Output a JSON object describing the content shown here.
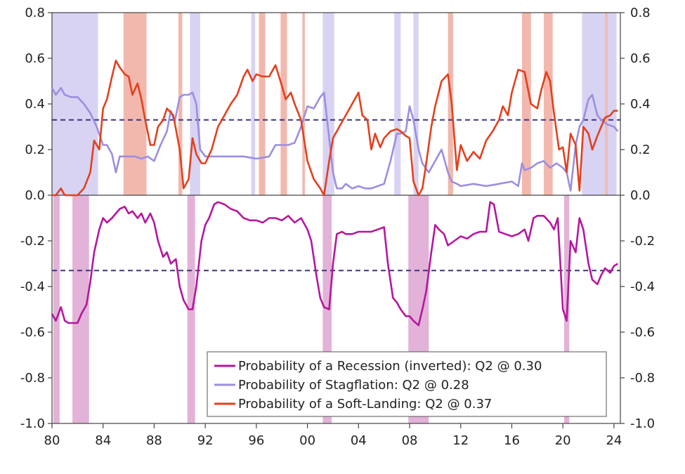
{
  "chart_data": {
    "type": "line",
    "x_ticks": [
      "80",
      "84",
      "88",
      "92",
      "96",
      "00",
      "04",
      "08",
      "12",
      "16",
      "20",
      "24"
    ],
    "y_ticks": [
      "0.8",
      "0.6",
      "0.4",
      "0.2",
      "0.0",
      "-0.2",
      "-0.4",
      "-0.6",
      "-0.8",
      "-1.0"
    ],
    "xlim": [
      1980,
      2024.5
    ],
    "ylim": [
      -1.0,
      0.8
    ],
    "threshold_upper": 0.33,
    "threshold_lower": -0.33,
    "legend_position": "bottom-right",
    "colors": {
      "recession": "#b5179e",
      "stagflation": "#9b8fe0",
      "soft_landing": "#e3401f",
      "stagflation_band": "#d8d3f3",
      "soft_landing_band": "#f2b8ad",
      "recession_band": "#e3b2d8",
      "threshold": "#3b3580"
    },
    "bands": {
      "stagflation": [
        [
          1980.0,
          1983.6
        ],
        [
          1990.8,
          1991.6
        ],
        [
          1995.6,
          1995.9
        ],
        [
          2001.2,
          2002.1
        ],
        [
          2006.8,
          2007.3
        ],
        [
          2008.3,
          2008.7
        ],
        [
          2021.5,
          2024.2
        ]
      ],
      "soft_landing": [
        [
          1985.6,
          1987.4
        ],
        [
          1989.9,
          1990.2
        ],
        [
          1996.2,
          1996.7
        ],
        [
          1997.9,
          1998.4
        ],
        [
          1999.6,
          1999.8
        ],
        [
          2011.0,
          2011.4
        ],
        [
          2016.8,
          2017.5
        ],
        [
          2018.5,
          2019.2
        ],
        [
          2023.3,
          2023.5
        ]
      ],
      "recession": [
        [
          1980.1,
          1980.6
        ],
        [
          1981.6,
          1982.9
        ],
        [
          1990.6,
          1991.2
        ],
        [
          2001.2,
          2001.9
        ],
        [
          2007.9,
          2009.5
        ],
        [
          2020.1,
          2020.5
        ]
      ]
    },
    "series": [
      {
        "name": "Probability of a Recession (inverted): Q2 @ 0.30",
        "x": [
          1980.0,
          1980.3,
          1980.7,
          1981.0,
          1981.3,
          1981.6,
          1982.0,
          1982.3,
          1982.7,
          1983.0,
          1983.3,
          1983.7,
          1984.0,
          1984.3,
          1984.7,
          1985.0,
          1985.3,
          1985.7,
          1986.0,
          1986.3,
          1986.7,
          1987.0,
          1987.3,
          1987.7,
          1988.0,
          1988.3,
          1988.7,
          1989.0,
          1989.3,
          1989.7,
          1990.0,
          1990.3,
          1990.7,
          1991.0,
          1991.3,
          1991.7,
          1992.0,
          1992.3,
          1992.7,
          1993.0,
          1993.5,
          1994.0,
          1994.5,
          1995.0,
          1995.5,
          1996.0,
          1996.5,
          1997.0,
          1997.5,
          1998.0,
          1998.5,
          1999.0,
          1999.5,
          2000.0,
          2000.3,
          2000.7,
          2001.0,
          2001.3,
          2001.7,
          2002.0,
          2002.3,
          2002.7,
          2003.0,
          2003.5,
          2004.0,
          2004.5,
          2005.0,
          2005.5,
          2006.0,
          2006.3,
          2006.7,
          2007.0,
          2007.3,
          2007.7,
          2008.0,
          2008.3,
          2008.7,
          2009.0,
          2009.3,
          2009.7,
          2010.0,
          2010.3,
          2010.7,
          2011.0,
          2011.5,
          2012.0,
          2012.5,
          2013.0,
          2013.5,
          2014.0,
          2014.3,
          2014.6,
          2015.0,
          2015.5,
          2016.0,
          2016.5,
          2017.0,
          2017.3,
          2017.7,
          2018.0,
          2018.5,
          2019.0,
          2019.3,
          2019.6,
          2020.0,
          2020.3,
          2020.6,
          2021.0,
          2021.3,
          2021.6,
          2022.0,
          2022.3,
          2022.7,
          2023.0,
          2023.3,
          2023.7,
          2024.0,
          2024.3
        ],
        "values": [
          -0.52,
          -0.55,
          -0.49,
          -0.55,
          -0.56,
          -0.56,
          -0.56,
          -0.52,
          -0.48,
          -0.38,
          -0.25,
          -0.15,
          -0.1,
          -0.12,
          -0.1,
          -0.08,
          -0.06,
          -0.05,
          -0.08,
          -0.07,
          -0.1,
          -0.08,
          -0.12,
          -0.08,
          -0.12,
          -0.2,
          -0.27,
          -0.25,
          -0.3,
          -0.28,
          -0.4,
          -0.46,
          -0.5,
          -0.5,
          -0.4,
          -0.2,
          -0.13,
          -0.1,
          -0.04,
          -0.03,
          -0.04,
          -0.06,
          -0.07,
          -0.1,
          -0.11,
          -0.11,
          -0.12,
          -0.1,
          -0.1,
          -0.11,
          -0.09,
          -0.12,
          -0.1,
          -0.15,
          -0.2,
          -0.35,
          -0.45,
          -0.49,
          -0.5,
          -0.3,
          -0.17,
          -0.16,
          -0.17,
          -0.17,
          -0.16,
          -0.16,
          -0.16,
          -0.15,
          -0.14,
          -0.3,
          -0.45,
          -0.47,
          -0.5,
          -0.53,
          -0.53,
          -0.55,
          -0.57,
          -0.5,
          -0.42,
          -0.25,
          -0.13,
          -0.15,
          -0.17,
          -0.22,
          -0.2,
          -0.18,
          -0.19,
          -0.17,
          -0.16,
          -0.16,
          -0.03,
          -0.04,
          -0.16,
          -0.17,
          -0.18,
          -0.17,
          -0.15,
          -0.2,
          -0.1,
          -0.09,
          -0.09,
          -0.12,
          -0.15,
          -0.1,
          -0.5,
          -0.55,
          -0.2,
          -0.25,
          -0.1,
          -0.15,
          -0.3,
          -0.37,
          -0.39,
          -0.35,
          -0.32,
          -0.34,
          -0.31,
          -0.3
        ]
      },
      {
        "name": "Probability of Stagflation: Q2 @ 0.28",
        "x": [
          1980.0,
          1980.3,
          1980.7,
          1981.0,
          1981.5,
          1982.0,
          1982.5,
          1983.0,
          1983.5,
          1984.0,
          1984.3,
          1984.7,
          1985.0,
          1985.3,
          1985.7,
          1986.5,
          1987.0,
          1987.5,
          1988.0,
          1988.5,
          1989.0,
          1989.3,
          1989.6,
          1990.0,
          1990.3,
          1990.7,
          1991.0,
          1991.3,
          1991.6,
          1992.0,
          1993.0,
          1994.0,
          1995.0,
          1996.0,
          1997.0,
          1997.5,
          1998.0,
          1998.5,
          1999.0,
          1999.5,
          2000.0,
          2000.5,
          2001.0,
          2001.3,
          2001.6,
          2002.0,
          2002.3,
          2002.7,
          2003.0,
          2003.5,
          2004.0,
          2004.5,
          2005.0,
          2005.5,
          2006.0,
          2006.5,
          2007.0,
          2007.3,
          2007.7,
          2008.0,
          2008.3,
          2008.7,
          2009.0,
          2009.5,
          2010.0,
          2010.5,
          2011.0,
          2011.3,
          2011.7,
          2012.0,
          2013.0,
          2014.0,
          2015.0,
          2016.0,
          2016.5,
          2016.8,
          2017.0,
          2017.5,
          2018.0,
          2018.5,
          2019.0,
          2019.5,
          2020.0,
          2020.3,
          2020.6,
          2021.0,
          2021.3,
          2021.6,
          2022.0,
          2022.3,
          2022.7,
          2023.0,
          2023.5,
          2024.0,
          2024.3
        ],
        "values": [
          0.47,
          0.44,
          0.47,
          0.44,
          0.43,
          0.43,
          0.4,
          0.36,
          0.3,
          0.22,
          0.22,
          0.18,
          0.1,
          0.17,
          0.17,
          0.17,
          0.16,
          0.17,
          0.15,
          0.22,
          0.28,
          0.37,
          0.32,
          0.43,
          0.44,
          0.44,
          0.45,
          0.4,
          0.2,
          0.17,
          0.17,
          0.17,
          0.17,
          0.16,
          0.17,
          0.22,
          0.22,
          0.22,
          0.23,
          0.3,
          0.39,
          0.38,
          0.43,
          0.45,
          0.3,
          0.1,
          0.03,
          0.03,
          0.05,
          0.03,
          0.04,
          0.03,
          0.03,
          0.04,
          0.05,
          0.15,
          0.27,
          0.27,
          0.28,
          0.39,
          0.33,
          0.2,
          0.14,
          0.1,
          0.15,
          0.2,
          0.1,
          0.06,
          0.05,
          0.04,
          0.05,
          0.04,
          0.05,
          0.06,
          0.04,
          0.14,
          0.11,
          0.12,
          0.14,
          0.15,
          0.12,
          0.14,
          0.12,
          0.1,
          0.02,
          0.22,
          0.3,
          0.33,
          0.42,
          0.44,
          0.35,
          0.33,
          0.31,
          0.3,
          0.28
        ]
      },
      {
        "name": "Probability of a Soft-Landing: Q2 @ 0.37",
        "x": [
          1980.0,
          1980.3,
          1980.7,
          1981.0,
          1981.5,
          1982.0,
          1982.5,
          1983.0,
          1983.3,
          1983.7,
          1984.0,
          1984.3,
          1984.7,
          1985.0,
          1985.3,
          1985.7,
          1986.0,
          1986.3,
          1986.7,
          1987.0,
          1987.3,
          1987.7,
          1988.0,
          1988.3,
          1988.7,
          1989.0,
          1989.5,
          1990.0,
          1990.3,
          1990.7,
          1991.0,
          1991.3,
          1991.7,
          1992.0,
          1992.5,
          1993.0,
          1993.5,
          1994.0,
          1994.5,
          1995.0,
          1995.3,
          1995.7,
          1996.0,
          1996.5,
          1997.0,
          1997.5,
          1998.0,
          1998.3,
          1998.7,
          1999.0,
          1999.5,
          2000.0,
          2000.5,
          2001.0,
          2001.3,
          2001.7,
          2002.0,
          2002.5,
          2003.0,
          2003.5,
          2004.0,
          2004.3,
          2004.7,
          2005.0,
          2005.3,
          2005.7,
          2006.0,
          2006.5,
          2007.0,
          2007.3,
          2007.7,
          2008.0,
          2008.3,
          2008.7,
          2009.0,
          2009.3,
          2009.7,
          2010.0,
          2010.5,
          2011.0,
          2011.3,
          2011.7,
          2012.0,
          2012.5,
          2013.0,
          2013.5,
          2014.0,
          2014.5,
          2015.0,
          2015.3,
          2015.7,
          2016.0,
          2016.5,
          2017.0,
          2017.5,
          2018.0,
          2018.3,
          2018.7,
          2019.0,
          2019.3,
          2019.7,
          2020.0,
          2020.3,
          2020.6,
          2021.0,
          2021.3,
          2021.6,
          2022.0,
          2022.3,
          2022.7,
          2023.0,
          2023.3,
          2023.7,
          2024.0,
          2024.3
        ],
        "values": [
          0.0,
          0.0,
          0.03,
          0.0,
          0.0,
          0.0,
          0.03,
          0.1,
          0.24,
          0.2,
          0.38,
          0.42,
          0.52,
          0.59,
          0.56,
          0.53,
          0.52,
          0.44,
          0.49,
          0.42,
          0.33,
          0.22,
          0.22,
          0.3,
          0.33,
          0.38,
          0.35,
          0.2,
          0.03,
          0.07,
          0.25,
          0.18,
          0.14,
          0.14,
          0.2,
          0.3,
          0.35,
          0.4,
          0.44,
          0.52,
          0.55,
          0.5,
          0.53,
          0.52,
          0.52,
          0.57,
          0.48,
          0.42,
          0.45,
          0.4,
          0.33,
          0.15,
          0.07,
          0.03,
          0.0,
          0.15,
          0.25,
          0.3,
          0.35,
          0.4,
          0.45,
          0.35,
          0.33,
          0.2,
          0.27,
          0.21,
          0.25,
          0.28,
          0.29,
          0.28,
          0.26,
          0.25,
          0.06,
          0.0,
          0.03,
          0.14,
          0.3,
          0.39,
          0.5,
          0.53,
          0.4,
          0.11,
          0.22,
          0.15,
          0.19,
          0.16,
          0.24,
          0.28,
          0.33,
          0.39,
          0.35,
          0.45,
          0.55,
          0.54,
          0.4,
          0.38,
          0.46,
          0.54,
          0.5,
          0.36,
          0.2,
          0.21,
          0.1,
          0.27,
          0.22,
          0.02,
          0.3,
          0.27,
          0.2,
          0.26,
          0.3,
          0.34,
          0.35,
          0.37,
          0.37
        ]
      }
    ]
  }
}
